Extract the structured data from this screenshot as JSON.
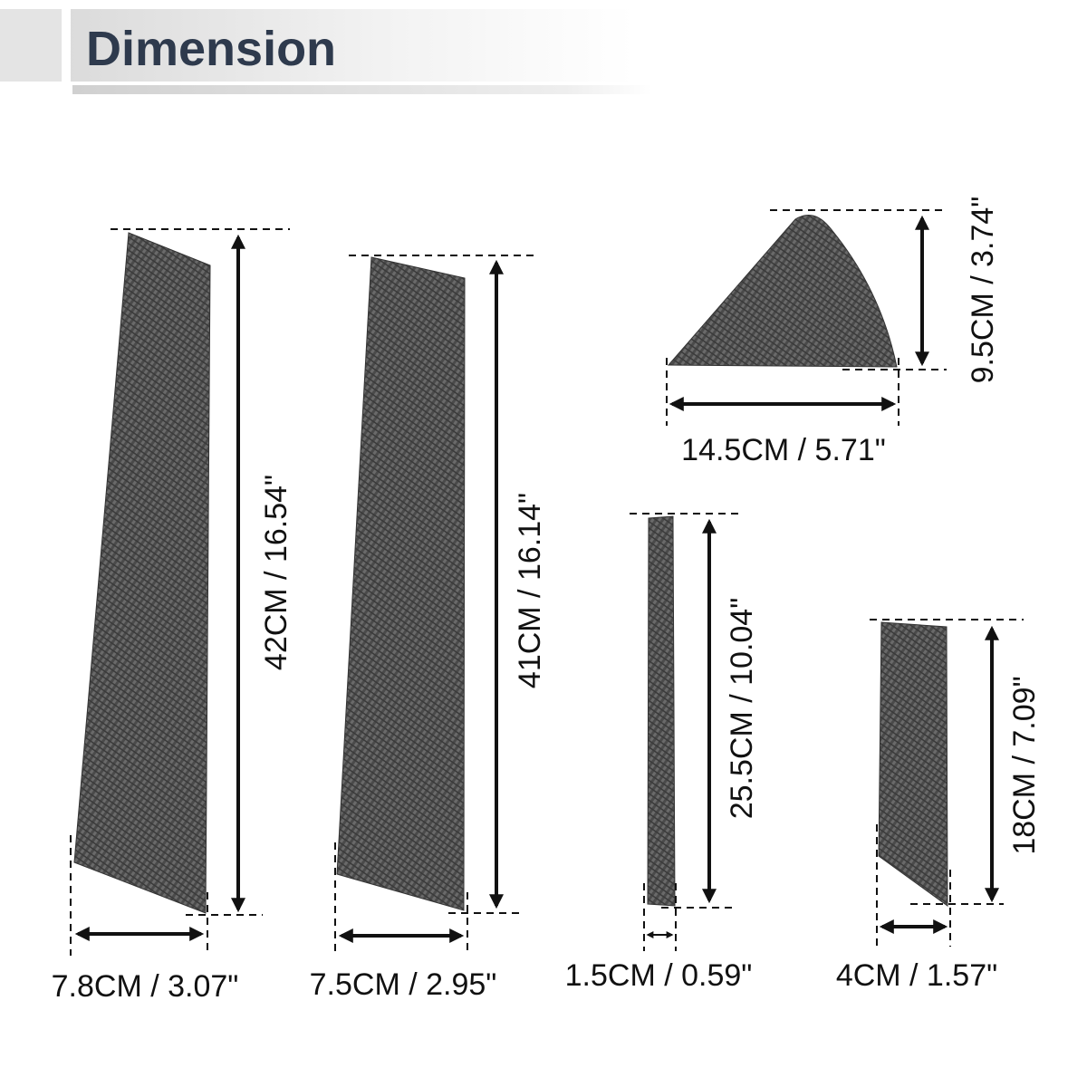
{
  "header": {
    "title": "Dimension"
  },
  "pieces": [
    {
      "height": "42CM / 16.54\"",
      "width": "7.8CM / 3.07\""
    },
    {
      "height": "41CM / 16.14\"",
      "width": "7.5CM / 2.95\""
    },
    {
      "height": "9.5CM / 3.74\"",
      "width": "14.5CM / 5.71\""
    },
    {
      "height": "25.5CM / 10.04\"",
      "width": "1.5CM / 0.59\""
    },
    {
      "height": "18CM / 7.09\"",
      "width": "4CM / 1.57\""
    }
  ]
}
